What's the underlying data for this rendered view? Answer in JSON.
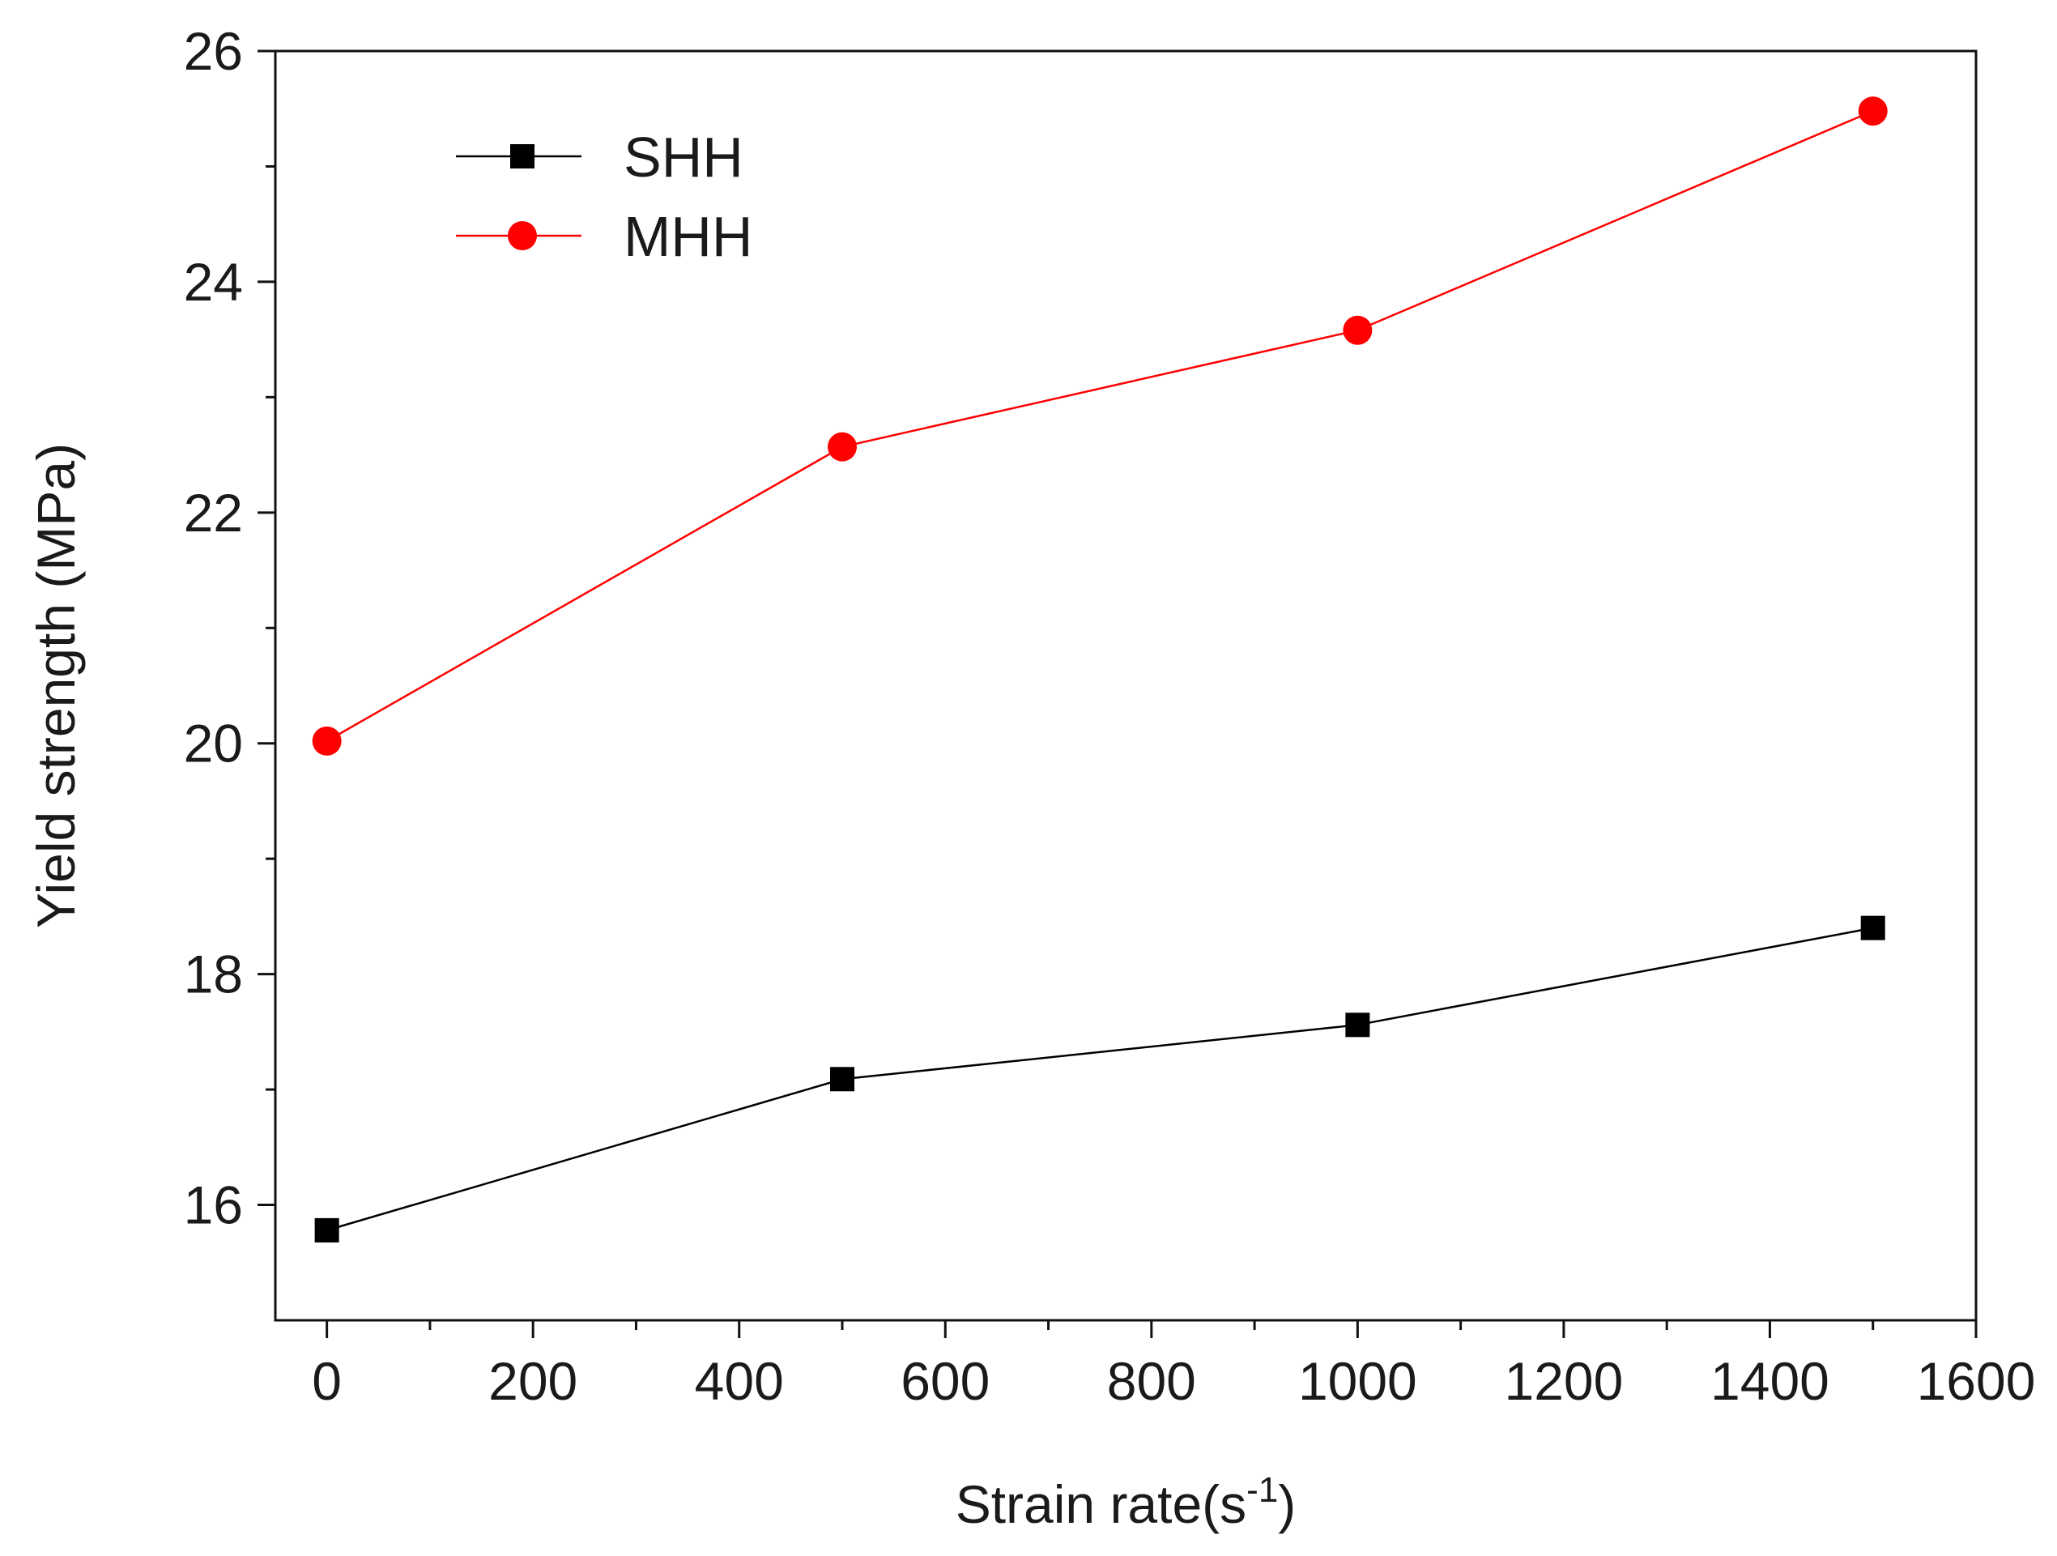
{
  "chart_data": {
    "type": "line",
    "title": "",
    "xlabel": "Strain rate(s",
    "xlabel_superscript": "-1",
    "xlabel_suffix": ")",
    "ylabel": "Yield strength (MPa)",
    "xlim": [
      -50,
      1600
    ],
    "ylim": [
      15,
      26
    ],
    "x_ticks": [
      0,
      200,
      400,
      600,
      800,
      1000,
      1200,
      1400,
      1600
    ],
    "x_minor_ticks": [
      100,
      300,
      500,
      700,
      900,
      1100,
      1300,
      1500
    ],
    "y_ticks": [
      16,
      18,
      20,
      22,
      24,
      26
    ],
    "y_minor_ticks": [
      17,
      19,
      21,
      23,
      25
    ],
    "grid": false,
    "legend_position": "top-left",
    "series": [
      {
        "name": "SHH",
        "color": "#000000",
        "marker": "square",
        "x": [
          0,
          500,
          1000,
          1500
        ],
        "values": [
          15.78,
          17.09,
          17.56,
          18.4
        ]
      },
      {
        "name": "MHH",
        "color": "#ff0000",
        "marker": "circle",
        "x": [
          0,
          500,
          1000,
          1500
        ],
        "values": [
          20.02,
          22.57,
          23.58,
          25.48
        ]
      }
    ]
  }
}
